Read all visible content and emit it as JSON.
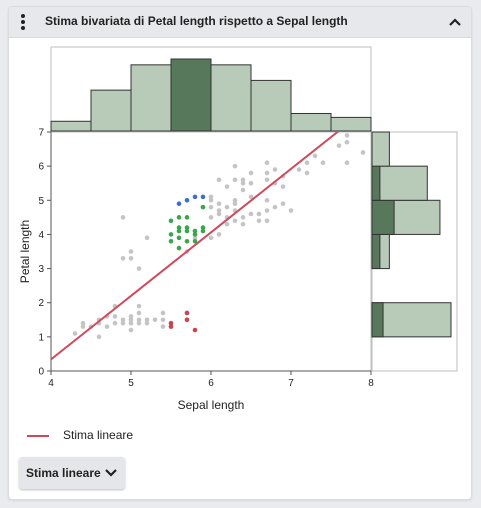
{
  "card": {
    "title": "Stima bivariata di Petal length rispetto a Sepal length",
    "menu_icon": "kebab-vertical-icon",
    "collapse_icon": "chevron-up-icon"
  },
  "legend": {
    "label": "Stima lineare",
    "color": "#d0495b"
  },
  "fit_button": {
    "label": "Stima lineare",
    "icon": "chevron-down-icon"
  },
  "chart_data": {
    "type": "scatter",
    "xlabel": "Sepal length",
    "ylabel": "Petal length",
    "xlim": [
      4,
      8
    ],
    "ylim": [
      0,
      7
    ],
    "xticks": [
      4,
      5,
      6,
      7,
      8
    ],
    "yticks": [
      0,
      1,
      2,
      3,
      4,
      5,
      6,
      7
    ],
    "colors": {
      "points": "#c4c4c4",
      "selected_red": "#c8454d",
      "selected_green": "#3aa54a",
      "selected_blue": "#3a6fd0",
      "hist_fill": "#b8cbb9",
      "hist_selected": "#57785a",
      "fit_line": "#d0495b"
    },
    "fit_line": {
      "slope": 1.86,
      "intercept": -7.1
    },
    "top_histogram": {
      "bins": [
        [
          4.0,
          4.5
        ],
        [
          4.5,
          5.0
        ],
        [
          5.0,
          5.5
        ],
        [
          5.5,
          6.0
        ],
        [
          6.0,
          6.5
        ],
        [
          6.5,
          7.0
        ],
        [
          7.0,
          7.5
        ],
        [
          7.5,
          8.0
        ]
      ],
      "counts": [
        5,
        21,
        34,
        37,
        34,
        26,
        9,
        7
      ],
      "selected": [
        0,
        0,
        0,
        37,
        0,
        0,
        0,
        0
      ]
    },
    "right_histogram": {
      "bins": [
        [
          1,
          2
        ],
        [
          2,
          3
        ],
        [
          3,
          4
        ],
        [
          4,
          5
        ],
        [
          5,
          6
        ],
        [
          6,
          7
        ]
      ],
      "counts": [
        50,
        0,
        11,
        43,
        35,
        11
      ],
      "selected": [
        7,
        0,
        5,
        14,
        5,
        0
      ]
    },
    "series": [
      {
        "group": "unselected",
        "points": [
          [
            4.3,
            1.1
          ],
          [
            4.4,
            1.3
          ],
          [
            4.4,
            1.4
          ],
          [
            4.5,
            1.3
          ],
          [
            4.6,
            1.0
          ],
          [
            4.6,
            1.4
          ],
          [
            4.6,
            1.5
          ],
          [
            4.7,
            1.3
          ],
          [
            4.7,
            1.6
          ],
          [
            4.8,
            1.4
          ],
          [
            4.8,
            1.6
          ],
          [
            4.8,
            1.9
          ],
          [
            4.9,
            1.4
          ],
          [
            4.9,
            1.5
          ],
          [
            5.0,
            1.2
          ],
          [
            5.0,
            1.4
          ],
          [
            5.0,
            1.5
          ],
          [
            5.0,
            1.6
          ],
          [
            5.1,
            1.4
          ],
          [
            5.1,
            1.5
          ],
          [
            5.1,
            1.7
          ],
          [
            5.1,
            1.9
          ],
          [
            5.2,
            1.4
          ],
          [
            5.2,
            1.5
          ],
          [
            5.3,
            1.5
          ],
          [
            5.4,
            1.3
          ],
          [
            5.4,
            1.5
          ],
          [
            5.4,
            1.7
          ],
          [
            5.5,
            1.3
          ],
          [
            5.5,
            1.4
          ],
          [
            5.7,
            1.5
          ],
          [
            5.7,
            1.7
          ],
          [
            4.9,
            3.3
          ],
          [
            4.9,
            4.5
          ],
          [
            5.0,
            3.3
          ],
          [
            5.0,
            3.5
          ],
          [
            5.1,
            3.0
          ],
          [
            5.2,
            3.9
          ],
          [
            5.7,
            3.5
          ],
          [
            5.8,
            3.9
          ],
          [
            5.8,
            4.0
          ],
          [
            5.8,
            4.1
          ],
          [
            6.0,
            3.9
          ],
          [
            6.1,
            4.0
          ],
          [
            6.1,
            4.6
          ],
          [
            6.1,
            4.7
          ],
          [
            6.2,
            4.3
          ],
          [
            6.2,
            4.5
          ],
          [
            6.2,
            4.8
          ],
          [
            6.3,
            4.4
          ],
          [
            6.3,
            4.7
          ],
          [
            6.3,
            4.9
          ],
          [
            6.3,
            5.0
          ],
          [
            6.4,
            4.3
          ],
          [
            6.4,
            4.5
          ],
          [
            6.4,
            5.3
          ],
          [
            6.4,
            5.5
          ],
          [
            6.5,
            4.6
          ],
          [
            6.5,
            5.1
          ],
          [
            6.5,
            5.5
          ],
          [
            6.6,
            4.4
          ],
          [
            6.6,
            4.6
          ],
          [
            6.7,
            4.4
          ],
          [
            6.7,
            4.7
          ],
          [
            6.7,
            5.0
          ],
          [
            6.7,
            5.6
          ],
          [
            6.8,
            4.8
          ],
          [
            6.8,
            5.5
          ],
          [
            6.9,
            4.9
          ],
          [
            6.9,
            5.4
          ],
          [
            6.9,
            5.7
          ],
          [
            7.0,
            4.7
          ],
          [
            6.0,
            5.1
          ],
          [
            6.1,
            5.6
          ],
          [
            6.2,
            5.4
          ],
          [
            6.3,
            5.6
          ],
          [
            6.3,
            6.0
          ],
          [
            6.4,
            5.6
          ],
          [
            6.5,
            5.8
          ],
          [
            6.7,
            5.8
          ],
          [
            6.7,
            6.1
          ],
          [
            6.8,
            5.9
          ],
          [
            7.1,
            5.9
          ],
          [
            7.2,
            5.8
          ],
          [
            7.2,
            6.1
          ],
          [
            7.3,
            6.3
          ],
          [
            7.4,
            6.1
          ],
          [
            7.6,
            6.6
          ],
          [
            7.7,
            6.1
          ],
          [
            7.7,
            6.7
          ],
          [
            7.7,
            6.9
          ],
          [
            7.9,
            6.4
          ],
          [
            6.0,
            4.5
          ],
          [
            6.0,
            5.0
          ],
          [
            6.0,
            4.8
          ],
          [
            5.9,
            4.8
          ],
          [
            6.1,
            4.9
          ]
        ]
      },
      {
        "group": "selected-red",
        "points": [
          [
            5.5,
            1.4
          ],
          [
            5.5,
            1.3
          ],
          [
            5.7,
            1.7
          ],
          [
            5.7,
            1.5
          ],
          [
            5.8,
            1.2
          ]
        ]
      },
      {
        "group": "selected-green",
        "points": [
          [
            5.5,
            4.4
          ],
          [
            5.5,
            4.0
          ],
          [
            5.5,
            3.8
          ],
          [
            5.6,
            4.5
          ],
          [
            5.6,
            4.2
          ],
          [
            5.6,
            4.1
          ],
          [
            5.6,
            3.9
          ],
          [
            5.7,
            4.5
          ],
          [
            5.7,
            4.2
          ],
          [
            5.7,
            4.1
          ],
          [
            5.7,
            3.8
          ],
          [
            5.8,
            4.1
          ],
          [
            5.8,
            4.0
          ],
          [
            5.8,
            3.8
          ],
          [
            5.9,
            4.2
          ],
          [
            5.9,
            4.8
          ],
          [
            5.9,
            4.1
          ],
          [
            5.6,
            3.6
          ]
        ]
      },
      {
        "group": "selected-blue",
        "points": [
          [
            5.6,
            4.9
          ],
          [
            5.7,
            5.0
          ],
          [
            5.8,
            5.1
          ],
          [
            5.9,
            5.1
          ]
        ]
      }
    ]
  }
}
